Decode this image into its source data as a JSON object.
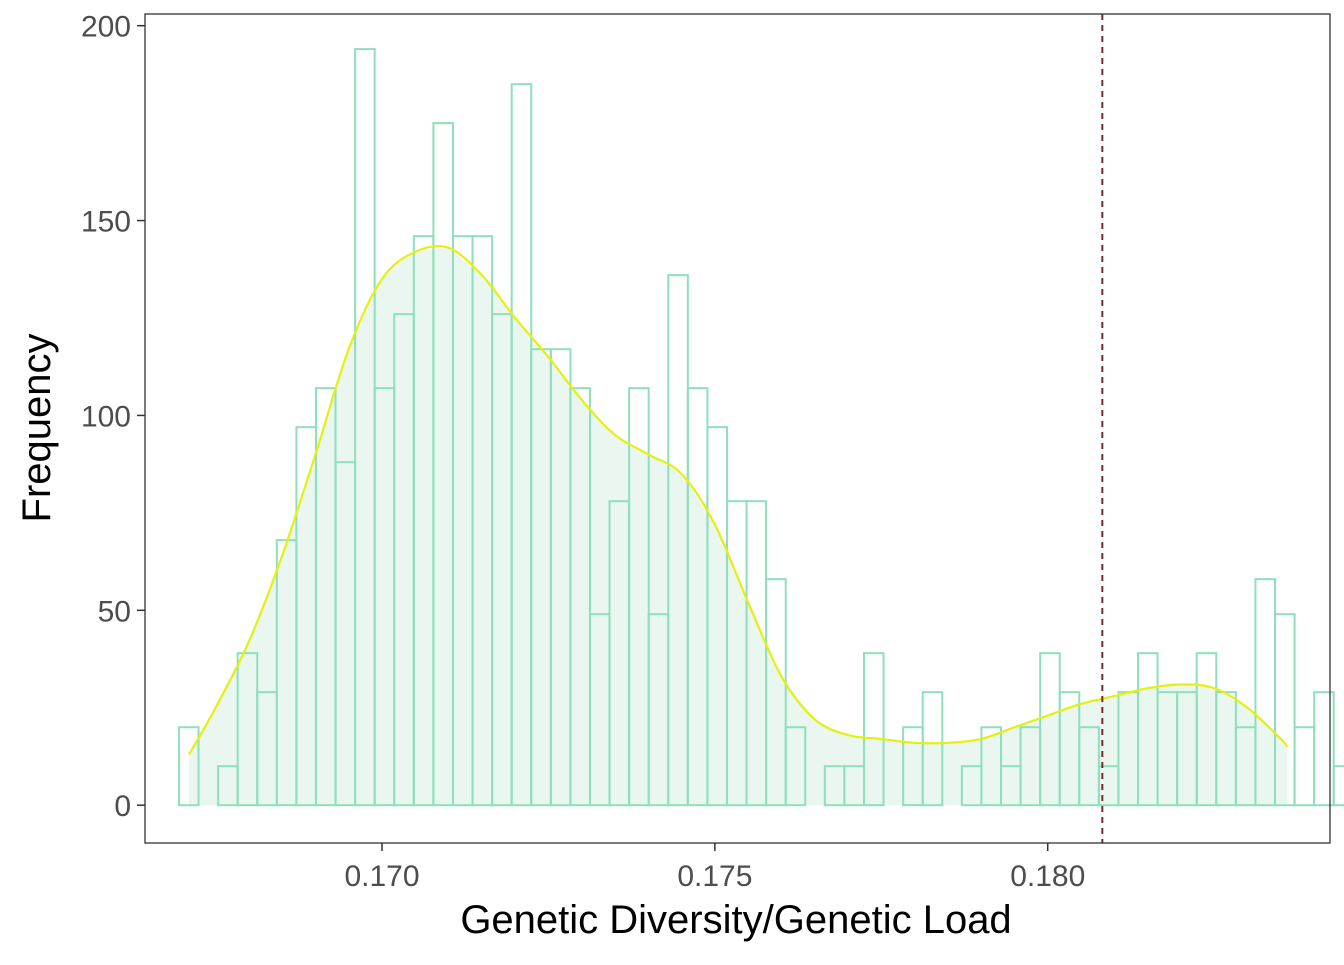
{
  "chart_data": {
    "type": "bar",
    "subtype": "histogram-with-density",
    "title": "",
    "xlabel": "Genetic Diversity/Genetic Load",
    "ylabel": "Frequency",
    "xlim": [
      0.16644,
      0.18424
    ],
    "ylim": [
      -9.7,
      203
    ],
    "x_ticks": [
      0.17,
      0.175,
      0.18
    ],
    "x_tick_labels": [
      "0.170",
      "0.175",
      "0.180"
    ],
    "y_ticks": [
      0,
      50,
      100,
      150,
      200
    ],
    "y_tick_labels": [
      "0",
      "50",
      "100",
      "150",
      "200"
    ],
    "grid": false,
    "legend": "none",
    "bin_start": 0.16695,
    "bin_width": 0.000294,
    "bin_counts": [
      20,
      0,
      10,
      39,
      29,
      68,
      97,
      107,
      88,
      194,
      107,
      126,
      146,
      175,
      146,
      146,
      126,
      185,
      117,
      117,
      107,
      49,
      78,
      107,
      49,
      136,
      107,
      97,
      78,
      78,
      58,
      20,
      0,
      10,
      10,
      39,
      0,
      20,
      29,
      0,
      10,
      20,
      10,
      20,
      39,
      29,
      20,
      10,
      29,
      39,
      29,
      29,
      39,
      29,
      20,
      58,
      49,
      20,
      29,
      10
    ],
    "density_x": [
      0.1671,
      0.1675,
      0.168,
      0.1685,
      0.169,
      0.1695,
      0.17,
      0.1705,
      0.171,
      0.1715,
      0.172,
      0.1725,
      0.173,
      0.1735,
      0.174,
      0.1745,
      0.175,
      0.1755,
      0.176,
      0.1765,
      0.177,
      0.1775,
      0.178,
      0.1785,
      0.179,
      0.1795,
      0.18,
      0.1805,
      0.181,
      0.1815,
      0.182,
      0.1825,
      0.183,
      0.1835,
      0.1836
    ],
    "density_y": [
      13,
      25,
      42,
      64,
      90,
      117,
      135,
      142,
      143,
      136,
      125,
      115,
      104,
      95,
      90,
      85,
      72,
      52,
      33,
      22,
      18,
      17,
      16,
      16,
      17,
      20,
      23,
      26,
      28,
      30,
      31,
      30,
      25,
      17,
      15
    ],
    "reference_line_x": 0.18082,
    "colors": {
      "bar_outline": "#8fdfbd",
      "bar_fill": "#ffffff",
      "density_line": "#e6f00f",
      "density_fill": "#eaf7f0",
      "reference_line": "#7a2a2a",
      "panel_border": "#333333",
      "tick_text": "#4d4d4d",
      "title_text": "#000000"
    }
  }
}
